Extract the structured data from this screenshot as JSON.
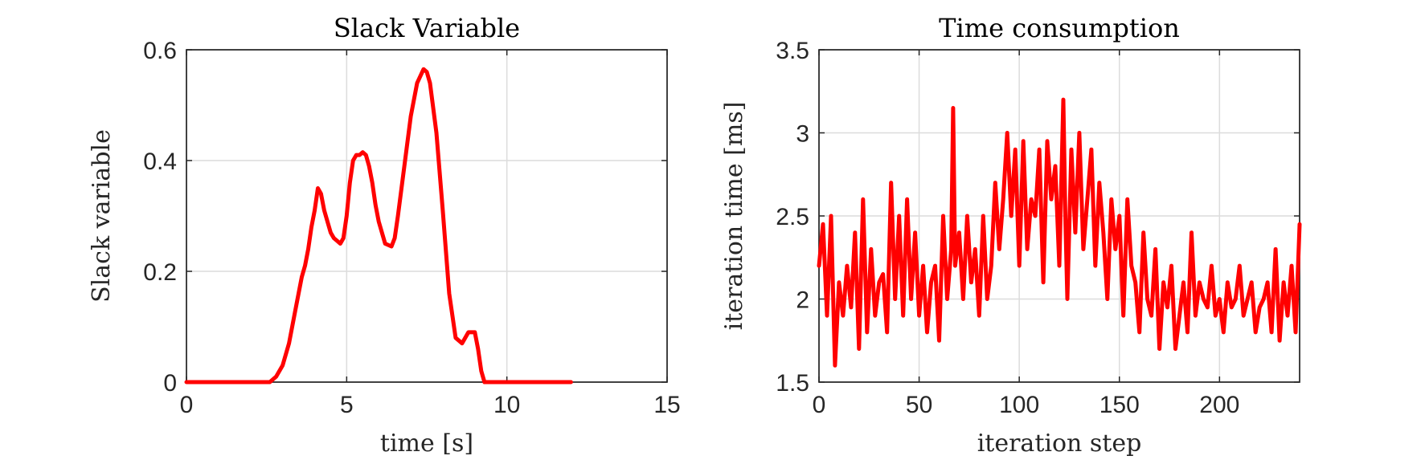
{
  "chart_data": [
    {
      "type": "line",
      "title": "Slack Variable",
      "xlabel": "time [s]",
      "ylabel": "Slack variable",
      "xlim": [
        0,
        15
      ],
      "ylim": [
        0,
        0.6
      ],
      "xticks": [
        0,
        5,
        10,
        15
      ],
      "yticks": [
        0,
        0.2,
        0.4,
        0.6
      ],
      "grid": true,
      "line_color": "#ff0000",
      "series": [
        {
          "x": [
            0,
            2.6,
            2.8,
            3.0,
            3.2,
            3.4,
            3.6,
            3.7,
            3.8,
            3.9,
            4.0,
            4.1,
            4.2,
            4.3,
            4.4,
            4.5,
            4.6,
            4.7,
            4.8,
            4.9,
            5.0,
            5.1,
            5.2,
            5.3,
            5.4,
            5.5,
            5.6,
            5.7,
            5.8,
            5.9,
            6.0,
            6.2,
            6.4,
            6.5,
            6.6,
            6.8,
            7.0,
            7.2,
            7.4,
            7.5,
            7.6,
            7.8,
            8.0,
            8.2,
            8.4,
            8.6,
            8.8,
            9.0,
            9.1,
            9.2,
            9.3,
            9.4,
            10.0,
            12.0
          ],
          "y": [
            0,
            0,
            0.01,
            0.03,
            0.07,
            0.13,
            0.19,
            0.21,
            0.24,
            0.28,
            0.31,
            0.35,
            0.34,
            0.31,
            0.29,
            0.27,
            0.26,
            0.255,
            0.25,
            0.26,
            0.3,
            0.36,
            0.4,
            0.41,
            0.41,
            0.415,
            0.41,
            0.39,
            0.36,
            0.32,
            0.29,
            0.25,
            0.245,
            0.26,
            0.3,
            0.39,
            0.48,
            0.54,
            0.565,
            0.56,
            0.54,
            0.45,
            0.31,
            0.16,
            0.08,
            0.07,
            0.09,
            0.09,
            0.06,
            0.02,
            0.0,
            0,
            0,
            0
          ]
        }
      ]
    },
    {
      "type": "line",
      "title": "Time consumption",
      "xlabel": "iteration step",
      "ylabel": "iteration time [ms]",
      "xlim": [
        0,
        240
      ],
      "ylim": [
        1.5,
        3.5
      ],
      "xticks": [
        0,
        50,
        100,
        150,
        200
      ],
      "yticks": [
        1.5,
        2,
        2.5,
        3,
        3.5
      ],
      "grid": true,
      "line_color": "#ff0000",
      "series": [
        {
          "x": [
            0,
            2,
            4,
            6,
            8,
            10,
            12,
            14,
            16,
            18,
            20,
            22,
            24,
            26,
            28,
            30,
            32,
            34,
            36,
            38,
            40,
            42,
            44,
            46,
            48,
            50,
            52,
            54,
            56,
            58,
            60,
            62,
            64,
            66,
            67,
            68,
            70,
            72,
            74,
            76,
            78,
            80,
            82,
            84,
            86,
            88,
            90,
            92,
            94,
            96,
            98,
            100,
            102,
            104,
            106,
            108,
            110,
            112,
            114,
            116,
            118,
            120,
            122,
            123,
            124,
            126,
            128,
            130,
            132,
            134,
            136,
            138,
            140,
            142,
            144,
            146,
            148,
            150,
            152,
            154,
            156,
            158,
            160,
            162,
            164,
            166,
            168,
            170,
            172,
            174,
            176,
            178,
            180,
            182,
            184,
            186,
            188,
            190,
            192,
            194,
            196,
            198,
            200,
            202,
            204,
            206,
            208,
            210,
            212,
            214,
            216,
            218,
            220,
            222,
            224,
            226,
            228,
            230,
            232,
            234,
            236,
            238,
            240
          ],
          "y": [
            2.2,
            2.45,
            1.9,
            2.5,
            1.6,
            2.1,
            1.9,
            2.2,
            1.95,
            2.4,
            1.7,
            2.6,
            1.8,
            2.3,
            1.9,
            2.1,
            2.15,
            1.8,
            2.7,
            2.0,
            2.5,
            1.9,
            2.6,
            2.0,
            2.4,
            1.9,
            2.2,
            1.8,
            2.1,
            2.2,
            1.75,
            2.5,
            2.0,
            2.3,
            3.15,
            2.2,
            2.4,
            2.0,
            2.5,
            2.1,
            2.3,
            1.9,
            2.5,
            2.0,
            2.2,
            2.7,
            2.3,
            2.6,
            3.0,
            2.5,
            2.9,
            2.2,
            2.95,
            2.3,
            2.6,
            2.5,
            2.9,
            2.1,
            2.95,
            2.6,
            2.8,
            2.2,
            3.2,
            2.5,
            2.0,
            2.9,
            2.4,
            3.0,
            2.3,
            2.6,
            2.9,
            2.2,
            2.7,
            2.4,
            2.0,
            2.6,
            2.3,
            2.5,
            1.9,
            2.6,
            2.2,
            2.1,
            1.8,
            2.4,
            2.0,
            1.9,
            2.3,
            1.7,
            2.1,
            1.95,
            2.2,
            1.7,
            1.9,
            2.1,
            1.8,
            2.4,
            1.9,
            2.1,
            2.0,
            1.95,
            2.2,
            1.9,
            2.0,
            1.8,
            2.1,
            1.95,
            2.0,
            2.2,
            1.9,
            2.0,
            2.1,
            1.8,
            1.95,
            2.0,
            2.1,
            1.8,
            2.3,
            1.75,
            2.1,
            1.9,
            2.2,
            1.8,
            2.45
          ]
        }
      ]
    }
  ]
}
